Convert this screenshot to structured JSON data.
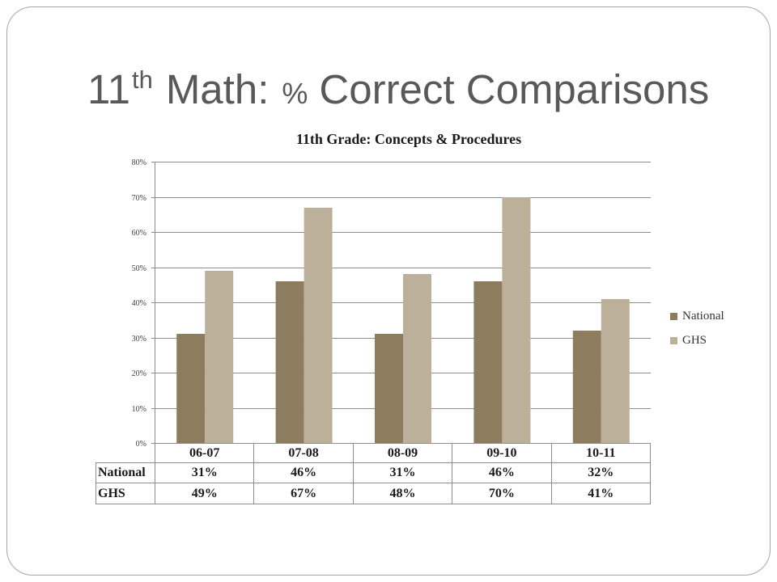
{
  "theme": {
    "title_color": "#595959",
    "frame_color": "#a6a6a6",
    "grid_color": "#8c8c8c"
  },
  "slide": {
    "title": {
      "number": "11",
      "superscript": "th",
      "label": "Math:",
      "percent": "%",
      "rest": "Correct Comparisons"
    }
  },
  "chart_data": {
    "type": "bar",
    "title": "11th Grade: Concepts & Procedures",
    "categories": [
      "06-07",
      "07-08",
      "08-09",
      "09-10",
      "10-11"
    ],
    "series": [
      {
        "name": "National",
        "values": [
          31,
          46,
          31,
          46,
          32
        ],
        "color": "#8d7c5d"
      },
      {
        "name": "GHS",
        "values": [
          49,
          67,
          48,
          70,
          41
        ],
        "color": "#bdb09a"
      }
    ],
    "ylim": [
      0,
      80
    ],
    "y_ticks": [
      {
        "value": 0,
        "label": "0%"
      },
      {
        "value": 10,
        "label": "10%"
      },
      {
        "value": 20,
        "label": "20%"
      },
      {
        "value": 30,
        "label": "30%"
      },
      {
        "value": 40,
        "label": "40%"
      },
      {
        "value": 50,
        "label": "50%"
      },
      {
        "value": 60,
        "label": "60%"
      },
      {
        "value": 70,
        "label": "70%"
      },
      {
        "value": 80,
        "label": "80%"
      }
    ],
    "grid": true,
    "legend_position": "right",
    "data_table": {
      "rows": [
        {
          "label": "National",
          "cells": [
            "31%",
            "46%",
            "31%",
            "46%",
            "32%"
          ]
        },
        {
          "label": "GHS",
          "cells": [
            "49%",
            "67%",
            "48%",
            "70%",
            "41%"
          ]
        }
      ]
    }
  }
}
